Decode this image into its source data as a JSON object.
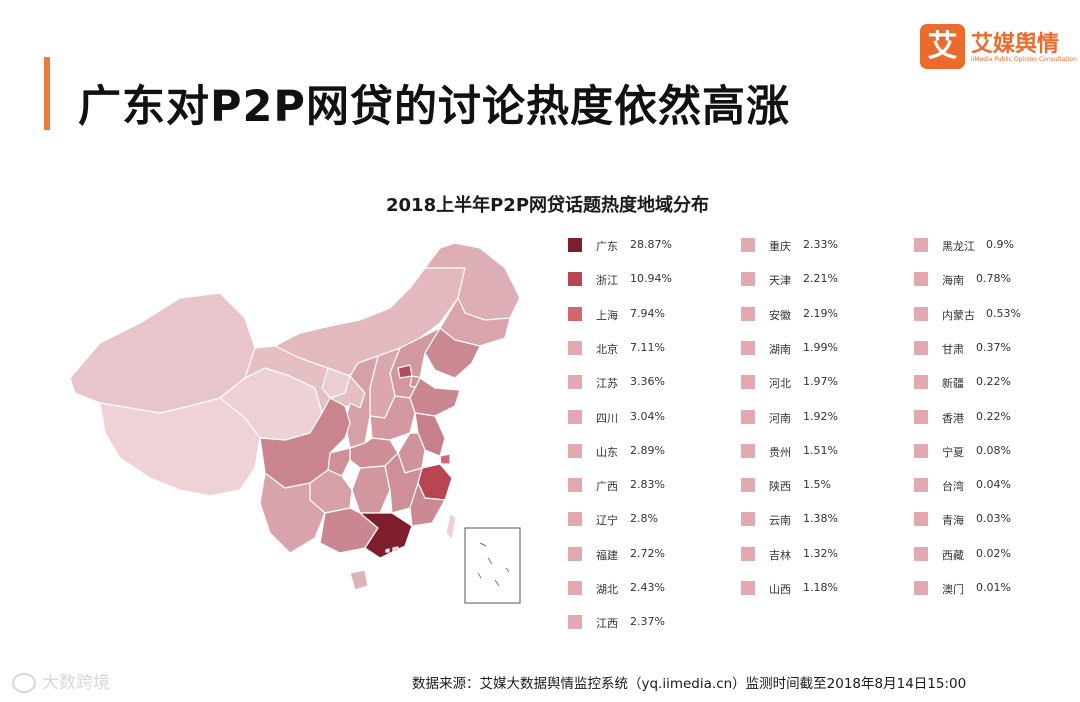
{
  "header": {
    "title": "广东对P2P网贷的讨论热度依然高涨",
    "logo_glyph": "艾",
    "logo_name": "艾媒舆情",
    "logo_sub": "iiMedia Public Opinion Consultation"
  },
  "chart_data": {
    "type": "choropleth",
    "title": "2018上半年P2P网贷话题热度地域分布",
    "unit": "%",
    "regions": [
      {
        "name": "广东",
        "value": 28.87,
        "label": "28.87%"
      },
      {
        "name": "浙江",
        "value": 10.94,
        "label": "10.94%"
      },
      {
        "name": "上海",
        "value": 7.94,
        "label": "7.94%"
      },
      {
        "name": "北京",
        "value": 7.11,
        "label": "7.11%"
      },
      {
        "name": "江苏",
        "value": 3.36,
        "label": "3.36%"
      },
      {
        "name": "四川",
        "value": 3.04,
        "label": "3.04%"
      },
      {
        "name": "山东",
        "value": 2.89,
        "label": "2.89%"
      },
      {
        "name": "广西",
        "value": 2.83,
        "label": "2.83%"
      },
      {
        "name": "辽宁",
        "value": 2.8,
        "label": "2.8%"
      },
      {
        "name": "福建",
        "value": 2.72,
        "label": "2.72%"
      },
      {
        "name": "湖北",
        "value": 2.43,
        "label": "2.43%"
      },
      {
        "name": "江西",
        "value": 2.37,
        "label": "2.37%"
      },
      {
        "name": "重庆",
        "value": 2.33,
        "label": "2.33%"
      },
      {
        "name": "天津",
        "value": 2.21,
        "label": "2.21%"
      },
      {
        "name": "安徽",
        "value": 2.19,
        "label": "2.19%"
      },
      {
        "name": "湖南",
        "value": 1.99,
        "label": "1.99%"
      },
      {
        "name": "河北",
        "value": 1.97,
        "label": "1.97%"
      },
      {
        "name": "河南",
        "value": 1.92,
        "label": "1.92%"
      },
      {
        "name": "贵州",
        "value": 1.51,
        "label": "1.51%"
      },
      {
        "name": "陕西",
        "value": 1.5,
        "label": "1.5%"
      },
      {
        "name": "云南",
        "value": 1.38,
        "label": "1.38%"
      },
      {
        "name": "吉林",
        "value": 1.32,
        "label": "1.32%"
      },
      {
        "name": "山西",
        "value": 1.18,
        "label": "1.18%"
      },
      {
        "name": "黑龙江",
        "value": 0.9,
        "label": "0.9%"
      },
      {
        "name": "海南",
        "value": 0.78,
        "label": "0.78%"
      },
      {
        "name": "内蒙古",
        "value": 0.53,
        "label": "0.53%"
      },
      {
        "name": "甘肃",
        "value": 0.37,
        "label": "0.37%"
      },
      {
        "name": "新疆",
        "value": 0.22,
        "label": "0.22%"
      },
      {
        "name": "香港",
        "value": 0.22,
        "label": "0.22%"
      },
      {
        "name": "宁夏",
        "value": 0.08,
        "label": "0.08%"
      },
      {
        "name": "台湾",
        "value": 0.04,
        "label": "0.04%"
      },
      {
        "name": "青海",
        "value": 0.03,
        "label": "0.03%"
      },
      {
        "name": "西藏",
        "value": 0.02,
        "label": "0.02%"
      },
      {
        "name": "澳门",
        "value": 0.01,
        "label": "0.01%"
      }
    ],
    "colors": {
      "top1": "#7e1d2b",
      "top2": "#b8454f",
      "top3": "#d2656e",
      "rest": "#e2a9b1"
    }
  },
  "footer": {
    "source": "数据来源：艾媒大数据舆情监控系统（yq.iimedia.cn）监测时间截至2018年8月14日15:00",
    "watermark": "大数跨境"
  }
}
